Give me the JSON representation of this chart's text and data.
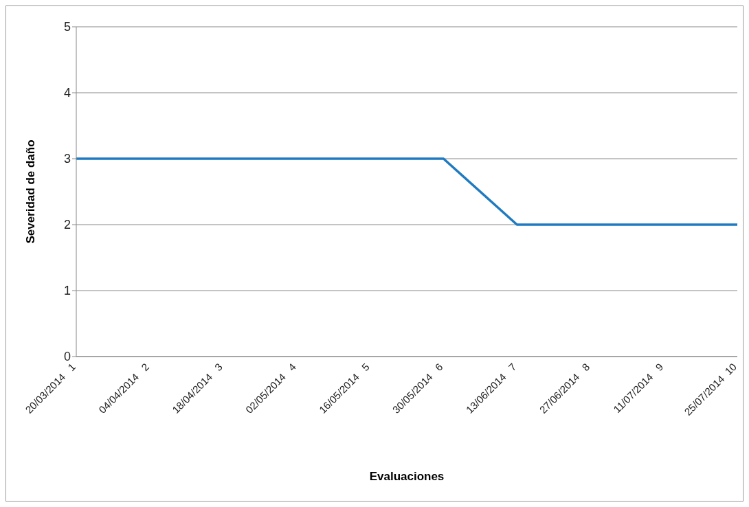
{
  "chart_data": {
    "type": "line",
    "xlabel": "Evaluaciones",
    "ylabel": "Severidad de daño",
    "categories": [
      "20/03/2014   1",
      "04/04/2014   2",
      "18/04/2014   3",
      "02/05/2014   4",
      "16/05/2014   5",
      "30/05/2014   6",
      "13/06/2014   7",
      "27/06/2014   8",
      "11/07/2014   9",
      "25/07/2014  10"
    ],
    "series": [
      {
        "color": "#1f7bc1",
        "values": [
          3,
          3,
          3,
          3,
          3,
          3,
          2,
          2,
          2,
          2
        ]
      }
    ],
    "ylim": [
      0,
      5
    ],
    "yticks": [
      0,
      1,
      2,
      3,
      4,
      5
    ],
    "grid": "y",
    "legend": false,
    "marker": "none",
    "line_style": "solid"
  }
}
